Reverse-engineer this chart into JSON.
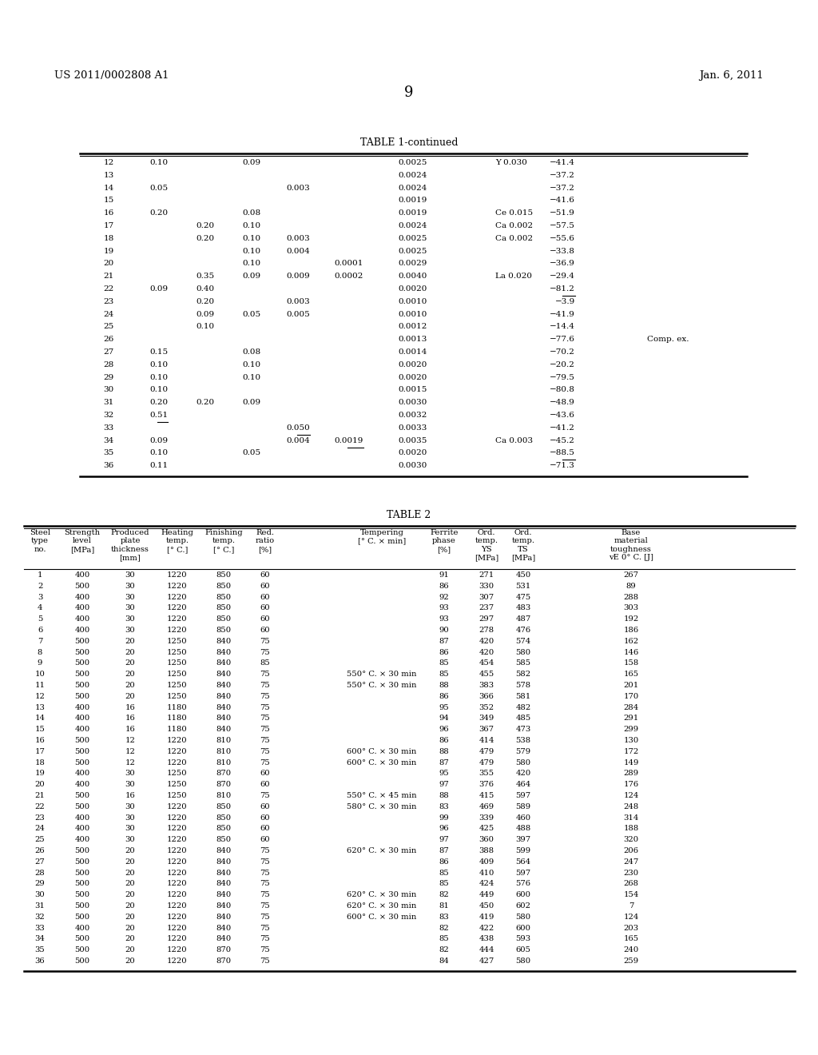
{
  "header_left": "US 2011/0002808 A1",
  "header_right": "Jan. 6, 2011",
  "page_number": "9",
  "table1_title": "TABLE 1-continued",
  "table1_rows": [
    {
      "no": "12",
      "Nb": "0.10",
      "V": "",
      "Ti": "0.09",
      "Zr": "",
      "REM": "",
      "N": "0.0025",
      "other": "Y 0.030",
      "val": "−41.4",
      "note": "",
      "ul_nb": false,
      "ul_zr": false,
      "ul_rem": false,
      "ul_val": false
    },
    {
      "no": "13",
      "Nb": "",
      "V": "",
      "Ti": "",
      "Zr": "",
      "REM": "",
      "N": "0.0024",
      "other": "",
      "val": "−37.2",
      "note": "",
      "ul_nb": false,
      "ul_zr": false,
      "ul_rem": false,
      "ul_val": false
    },
    {
      "no": "14",
      "Nb": "0.05",
      "V": "",
      "Ti": "",
      "Zr": "0.003",
      "REM": "",
      "N": "0.0024",
      "other": "",
      "val": "−37.2",
      "note": "",
      "ul_nb": false,
      "ul_zr": false,
      "ul_rem": false,
      "ul_val": false
    },
    {
      "no": "15",
      "Nb": "",
      "V": "",
      "Ti": "",
      "Zr": "",
      "REM": "",
      "N": "0.0019",
      "other": "",
      "val": "−41.6",
      "note": "",
      "ul_nb": false,
      "ul_zr": false,
      "ul_rem": false,
      "ul_val": false
    },
    {
      "no": "16",
      "Nb": "0.20",
      "V": "",
      "Ti": "0.08",
      "Zr": "",
      "REM": "",
      "N": "0.0019",
      "other": "Ce 0.015",
      "val": "−51.9",
      "note": "",
      "ul_nb": false,
      "ul_zr": false,
      "ul_rem": false,
      "ul_val": false
    },
    {
      "no": "17",
      "Nb": "",
      "V": "0.20",
      "Ti": "0.10",
      "Zr": "",
      "REM": "",
      "N": "0.0024",
      "other": "Ca 0.002",
      "val": "−57.5",
      "note": "",
      "ul_nb": false,
      "ul_zr": false,
      "ul_rem": false,
      "ul_val": false
    },
    {
      "no": "18",
      "Nb": "",
      "V": "0.20",
      "Ti": "0.10",
      "Zr": "0.003",
      "REM": "",
      "N": "0.0025",
      "other": "Ca 0.002",
      "val": "−55.6",
      "note": "",
      "ul_nb": false,
      "ul_zr": false,
      "ul_rem": false,
      "ul_val": false
    },
    {
      "no": "19",
      "Nb": "",
      "V": "",
      "Ti": "0.10",
      "Zr": "0.004",
      "REM": "",
      "N": "0.0025",
      "other": "",
      "val": "−33.8",
      "note": "",
      "ul_nb": false,
      "ul_zr": false,
      "ul_rem": false,
      "ul_val": false
    },
    {
      "no": "20",
      "Nb": "",
      "V": "",
      "Ti": "0.10",
      "Zr": "",
      "REM": "0.0001",
      "N": "0.0029",
      "other": "",
      "val": "−36.9",
      "note": "",
      "ul_nb": false,
      "ul_zr": false,
      "ul_rem": false,
      "ul_val": false
    },
    {
      "no": "21",
      "Nb": "",
      "V": "0.35",
      "Ti": "0.09",
      "Zr": "0.009",
      "REM": "0.0002",
      "N": "0.0040",
      "other": "La 0.020",
      "val": "−29.4",
      "note": "",
      "ul_nb": false,
      "ul_zr": false,
      "ul_rem": false,
      "ul_val": false
    },
    {
      "no": "22",
      "Nb": "0.09",
      "V": "0.40",
      "Ti": "",
      "Zr": "",
      "REM": "",
      "N": "0.0020",
      "other": "",
      "val": "−81.2",
      "note": "",
      "ul_nb": false,
      "ul_zr": false,
      "ul_rem": false,
      "ul_val": true
    },
    {
      "no": "23",
      "Nb": "",
      "V": "0.20",
      "Ti": "",
      "Zr": "0.003",
      "REM": "",
      "N": "0.0010",
      "other": "",
      "val": "−3.9",
      "note": "",
      "ul_nb": false,
      "ul_zr": false,
      "ul_rem": false,
      "ul_val": false
    },
    {
      "no": "24",
      "Nb": "",
      "V": "0.09",
      "Ti": "0.05",
      "Zr": "0.005",
      "REM": "",
      "N": "0.0010",
      "other": "",
      "val": "−41.9",
      "note": "",
      "ul_nb": false,
      "ul_zr": false,
      "ul_rem": false,
      "ul_val": false
    },
    {
      "no": "25",
      "Nb": "",
      "V": "0.10",
      "Ti": "",
      "Zr": "",
      "REM": "",
      "N": "0.0012",
      "other": "",
      "val": "−14.4",
      "note": "",
      "ul_nb": false,
      "ul_zr": false,
      "ul_rem": false,
      "ul_val": false
    },
    {
      "no": "26",
      "Nb": "",
      "V": "",
      "Ti": "",
      "Zr": "",
      "REM": "",
      "N": "0.0013",
      "other": "",
      "val": "−77.6",
      "note": "Comp. ex.",
      "ul_nb": false,
      "ul_zr": false,
      "ul_rem": false,
      "ul_val": false
    },
    {
      "no": "27",
      "Nb": "0.15",
      "V": "",
      "Ti": "0.08",
      "Zr": "",
      "REM": "",
      "N": "0.0014",
      "other": "",
      "val": "−70.2",
      "note": "",
      "ul_nb": false,
      "ul_zr": false,
      "ul_rem": false,
      "ul_val": false
    },
    {
      "no": "28",
      "Nb": "0.10",
      "V": "",
      "Ti": "0.10",
      "Zr": "",
      "REM": "",
      "N": "0.0020",
      "other": "",
      "val": "−20.2",
      "note": "",
      "ul_nb": false,
      "ul_zr": false,
      "ul_rem": false,
      "ul_val": false
    },
    {
      "no": "29",
      "Nb": "0.10",
      "V": "",
      "Ti": "0.10",
      "Zr": "",
      "REM": "",
      "N": "0.0020",
      "other": "",
      "val": "−79.5",
      "note": "",
      "ul_nb": false,
      "ul_zr": false,
      "ul_rem": false,
      "ul_val": false
    },
    {
      "no": "30",
      "Nb": "0.10",
      "V": "",
      "Ti": "",
      "Zr": "",
      "REM": "",
      "N": "0.0015",
      "other": "",
      "val": "−80.8",
      "note": "",
      "ul_nb": false,
      "ul_zr": false,
      "ul_rem": false,
      "ul_val": false
    },
    {
      "no": "31",
      "Nb": "0.20",
      "V": "0.20",
      "Ti": "0.09",
      "Zr": "",
      "REM": "",
      "N": "0.0030",
      "other": "",
      "val": "−48.9",
      "note": "",
      "ul_nb": false,
      "ul_zr": false,
      "ul_rem": false,
      "ul_val": false
    },
    {
      "no": "32",
      "Nb": "0.51",
      "V": "",
      "Ti": "",
      "Zr": "",
      "REM": "",
      "N": "0.0032",
      "other": "",
      "val": "−43.6",
      "note": "",
      "ul_nb": true,
      "ul_zr": false,
      "ul_rem": false,
      "ul_val": false
    },
    {
      "no": "33",
      "Nb": "",
      "V": "",
      "Ti": "",
      "Zr": "0.050",
      "REM": "",
      "N": "0.0033",
      "other": "",
      "val": "−41.2",
      "note": "",
      "ul_nb": false,
      "ul_zr": true,
      "ul_rem": false,
      "ul_val": false
    },
    {
      "no": "34",
      "Nb": "0.09",
      "V": "",
      "Ti": "",
      "Zr": "0.004",
      "REM": "0.0019",
      "N": "0.0035",
      "other": "Ca 0.003",
      "val": "−45.2",
      "note": "",
      "ul_nb": false,
      "ul_zr": false,
      "ul_rem": true,
      "ul_val": false
    },
    {
      "no": "35",
      "Nb": "0.10",
      "V": "",
      "Ti": "0.05",
      "Zr": "",
      "REM": "",
      "N": "0.0020",
      "other": "",
      "val": "−88.5",
      "note": "",
      "ul_nb": false,
      "ul_zr": false,
      "ul_rem": false,
      "ul_val": true
    },
    {
      "no": "36",
      "Nb": "0.11",
      "V": "",
      "Ti": "",
      "Zr": "",
      "REM": "",
      "N": "0.0030",
      "other": "",
      "val": "−71.3",
      "note": "",
      "ul_nb": false,
      "ul_zr": false,
      "ul_rem": false,
      "ul_val": false
    }
  ],
  "table2_title": "TABLE 2",
  "table2_rows": [
    [
      1,
      400,
      30,
      1220,
      850,
      60,
      "",
      91,
      271,
      450,
      267
    ],
    [
      2,
      500,
      30,
      1220,
      850,
      60,
      "",
      86,
      330,
      531,
      89
    ],
    [
      3,
      400,
      30,
      1220,
      850,
      60,
      "",
      92,
      307,
      475,
      288
    ],
    [
      4,
      400,
      30,
      1220,
      850,
      60,
      "",
      93,
      237,
      483,
      303
    ],
    [
      5,
      400,
      30,
      1220,
      850,
      60,
      "",
      93,
      297,
      487,
      192
    ],
    [
      6,
      400,
      30,
      1220,
      850,
      60,
      "",
      90,
      278,
      476,
      186
    ],
    [
      7,
      500,
      20,
      1250,
      840,
      75,
      "",
      87,
      420,
      574,
      162
    ],
    [
      8,
      500,
      20,
      1250,
      840,
      75,
      "",
      86,
      420,
      580,
      146
    ],
    [
      9,
      500,
      20,
      1250,
      840,
      85,
      "",
      85,
      454,
      585,
      158
    ],
    [
      10,
      500,
      20,
      1250,
      840,
      75,
      "550° C. × 30 min",
      85,
      455,
      582,
      165
    ],
    [
      11,
      500,
      20,
      1250,
      840,
      75,
      "550° C. × 30 min",
      88,
      383,
      578,
      201
    ],
    [
      12,
      500,
      20,
      1250,
      840,
      75,
      "",
      86,
      366,
      581,
      170
    ],
    [
      13,
      400,
      16,
      1180,
      840,
      75,
      "",
      95,
      352,
      482,
      284
    ],
    [
      14,
      400,
      16,
      1180,
      840,
      75,
      "",
      94,
      349,
      485,
      291
    ],
    [
      15,
      400,
      16,
      1180,
      840,
      75,
      "",
      96,
      367,
      473,
      299
    ],
    [
      16,
      500,
      12,
      1220,
      810,
      75,
      "",
      86,
      414,
      538,
      130
    ],
    [
      17,
      500,
      12,
      1220,
      810,
      75,
      "600° C. × 30 min",
      88,
      479,
      579,
      172
    ],
    [
      18,
      500,
      12,
      1220,
      810,
      75,
      "600° C. × 30 min",
      87,
      479,
      580,
      149
    ],
    [
      19,
      400,
      30,
      1250,
      870,
      60,
      "",
      95,
      355,
      420,
      289
    ],
    [
      20,
      400,
      30,
      1250,
      870,
      60,
      "",
      97,
      376,
      464,
      176
    ],
    [
      21,
      500,
      16,
      1250,
      810,
      75,
      "550° C. × 45 min",
      88,
      415,
      597,
      124
    ],
    [
      22,
      500,
      30,
      1220,
      850,
      60,
      "580° C. × 30 min",
      83,
      469,
      589,
      248
    ],
    [
      23,
      400,
      30,
      1220,
      850,
      60,
      "",
      99,
      339,
      460,
      314
    ],
    [
      24,
      400,
      30,
      1220,
      850,
      60,
      "",
      96,
      425,
      488,
      188
    ],
    [
      25,
      400,
      30,
      1220,
      850,
      60,
      "",
      97,
      360,
      397,
      320
    ],
    [
      26,
      500,
      20,
      1220,
      840,
      75,
      "620° C. × 30 min",
      87,
      388,
      599,
      206
    ],
    [
      27,
      500,
      20,
      1220,
      840,
      75,
      "",
      86,
      409,
      564,
      247
    ],
    [
      28,
      500,
      20,
      1220,
      840,
      75,
      "",
      85,
      410,
      597,
      230
    ],
    [
      29,
      500,
      20,
      1220,
      840,
      75,
      "",
      85,
      424,
      576,
      268
    ],
    [
      30,
      500,
      20,
      1220,
      840,
      75,
      "620° C. × 30 min",
      82,
      449,
      600,
      154
    ],
    [
      31,
      500,
      20,
      1220,
      840,
      75,
      "620° C. × 30 min",
      81,
      450,
      602,
      7
    ],
    [
      32,
      500,
      20,
      1220,
      840,
      75,
      "600° C. × 30 min",
      83,
      419,
      580,
      124
    ],
    [
      33,
      400,
      20,
      1220,
      840,
      75,
      "",
      82,
      422,
      600,
      203
    ],
    [
      34,
      500,
      20,
      1220,
      840,
      75,
      "",
      85,
      438,
      593,
      165
    ],
    [
      35,
      500,
      20,
      1220,
      870,
      75,
      "",
      82,
      444,
      605,
      240
    ],
    [
      36,
      500,
      20,
      1220,
      870,
      75,
      "",
      84,
      427,
      580,
      259
    ]
  ]
}
